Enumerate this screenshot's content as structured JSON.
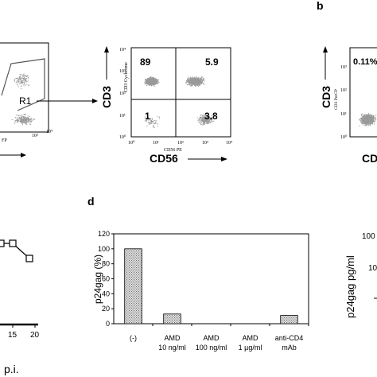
{
  "panel_labels": {
    "b": "b",
    "d": "d"
  },
  "panel_a_left": {
    "gate_label": "R1",
    "x_axis_fragment": "FP",
    "x_tick_labels": [
      "10³",
      "10⁴"
    ]
  },
  "panel_a_right": {
    "y_axis_label": "CD3",
    "x_axis_label": "CD56",
    "inner_y_label": "CD3 Cychrome",
    "inner_x_label": "CD56 PE",
    "quadrant_values": {
      "top_left": "89",
      "top_right": "5.9",
      "bottom_left": "1",
      "bottom_right": "3.8"
    },
    "y_tick_labels": [
      "10⁰",
      "10¹",
      "10²",
      "10³",
      "10⁴"
    ],
    "x_tick_labels": [
      "10⁰",
      "10¹",
      "10²",
      "10³",
      "10⁴"
    ]
  },
  "panel_b": {
    "y_axis_label": "CD3",
    "x_axis_fragment": "CD",
    "inner_y_label": "CD3 PerCP",
    "quadrant_value": "0.11%",
    "y_tick_labels": [
      "10⁰",
      "10¹",
      "10²",
      "10³"
    ]
  },
  "panel_c": {
    "x_tick_labels": [
      "15",
      "20"
    ],
    "x_axis_fragment": "p.i."
  },
  "panel_d": {
    "chart_data": {
      "type": "bar",
      "categories": [
        "(-)",
        "AMD 10 ng/ml",
        "AMD 100 ng/ml",
        "AMD 1 µg/ml",
        "anti-CD4 mAb"
      ],
      "category_lines": [
        [
          "(-)"
        ],
        [
          "AMD",
          "10 ng/ml"
        ],
        [
          "AMD",
          "100 ng/ml"
        ],
        [
          "AMD",
          "1 µg/ml"
        ],
        [
          "anti-CD4",
          "mAb"
        ]
      ],
      "values": [
        100,
        13,
        0,
        0,
        11
      ],
      "ylabel": "p24gag (%)",
      "ylim": [
        0,
        120
      ],
      "y_ticks": [
        0,
        20,
        40,
        60,
        80,
        100,
        120
      ],
      "y_tick_labels": [
        "0",
        "20",
        "40",
        "60",
        "80",
        "100",
        "120"
      ]
    }
  },
  "panel_e": {
    "y_axis_label": "p24gag pg/ml",
    "y_tick_labels": [
      "100",
      "10"
    ]
  },
  "colors": {
    "dots": "#9a9a9a",
    "bar_fill": "#d9d9d9",
    "bar_hatch": "#7a7a7a"
  }
}
